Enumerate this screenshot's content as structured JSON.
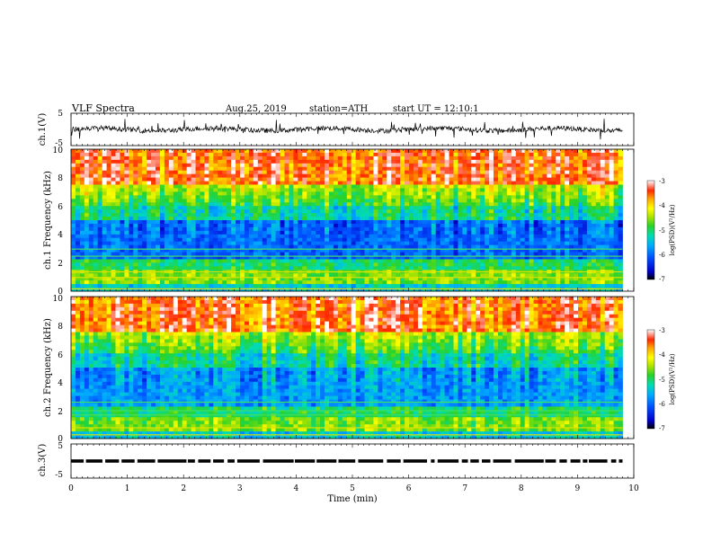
{
  "header": {
    "title": "VLF Spectra",
    "date": "Aug.25, 2019",
    "station": "station=ATH",
    "start_ut": "start UT = 12:10:1"
  },
  "chart_data": [
    {
      "type": "line",
      "name": "ch1-waveform",
      "ylabel": "ch.1(V)",
      "ylim": [
        -5,
        5
      ],
      "yticks": [
        "5",
        "-5"
      ],
      "xlim": [
        0,
        10
      ],
      "approx_mean": 0,
      "approx_amplitude": 1.5
    },
    {
      "type": "heatmap",
      "name": "ch1-spectrogram",
      "ylabel": "ch.1 Frequency (kHz)",
      "ylim": [
        0,
        10
      ],
      "yticks": [
        "0",
        "2",
        "4",
        "6",
        "8",
        "10"
      ],
      "xlim": [
        0,
        9.8
      ],
      "colorbar": {
        "label": "log(PSD)(V²/Hz)",
        "range": [
          -7,
          -3
        ],
        "ticks": [
          "-3",
          "-4",
          "-5",
          "-6",
          "-7"
        ]
      }
    },
    {
      "type": "heatmap",
      "name": "ch2-spectrogram",
      "ylabel": "ch.2 Frequency (kHz)",
      "ylim": [
        0,
        10
      ],
      "yticks": [
        "0",
        "2",
        "4",
        "6",
        "8",
        "10"
      ],
      "xlim": [
        0,
        9.8
      ],
      "colorbar": {
        "label": "log(PSD)(V²/Hz)",
        "range": [
          -7,
          -3
        ],
        "ticks": [
          "-3",
          "-4",
          "-5",
          "-6",
          "-7"
        ]
      }
    },
    {
      "type": "line",
      "name": "ch3-waveform",
      "ylabel": "ch.3(V)",
      "ylim": [
        -5,
        5
      ],
      "yticks": [
        "5",
        "-5"
      ],
      "xlim": [
        0,
        10
      ],
      "approx_value": 0
    }
  ],
  "xaxis": {
    "label": "Time (min)",
    "range": [
      0,
      10
    ],
    "ticks": [
      "0",
      "1",
      "2",
      "3",
      "4",
      "5",
      "6",
      "7",
      "8",
      "9",
      "10"
    ]
  },
  "colors": {
    "scale": [
      "#000000",
      "#0000c8",
      "#0050ff",
      "#00aaff",
      "#00dcb4",
      "#28d228",
      "#b4e600",
      "#ffff00",
      "#ffa000",
      "#ff2800",
      "#ffffff"
    ]
  }
}
